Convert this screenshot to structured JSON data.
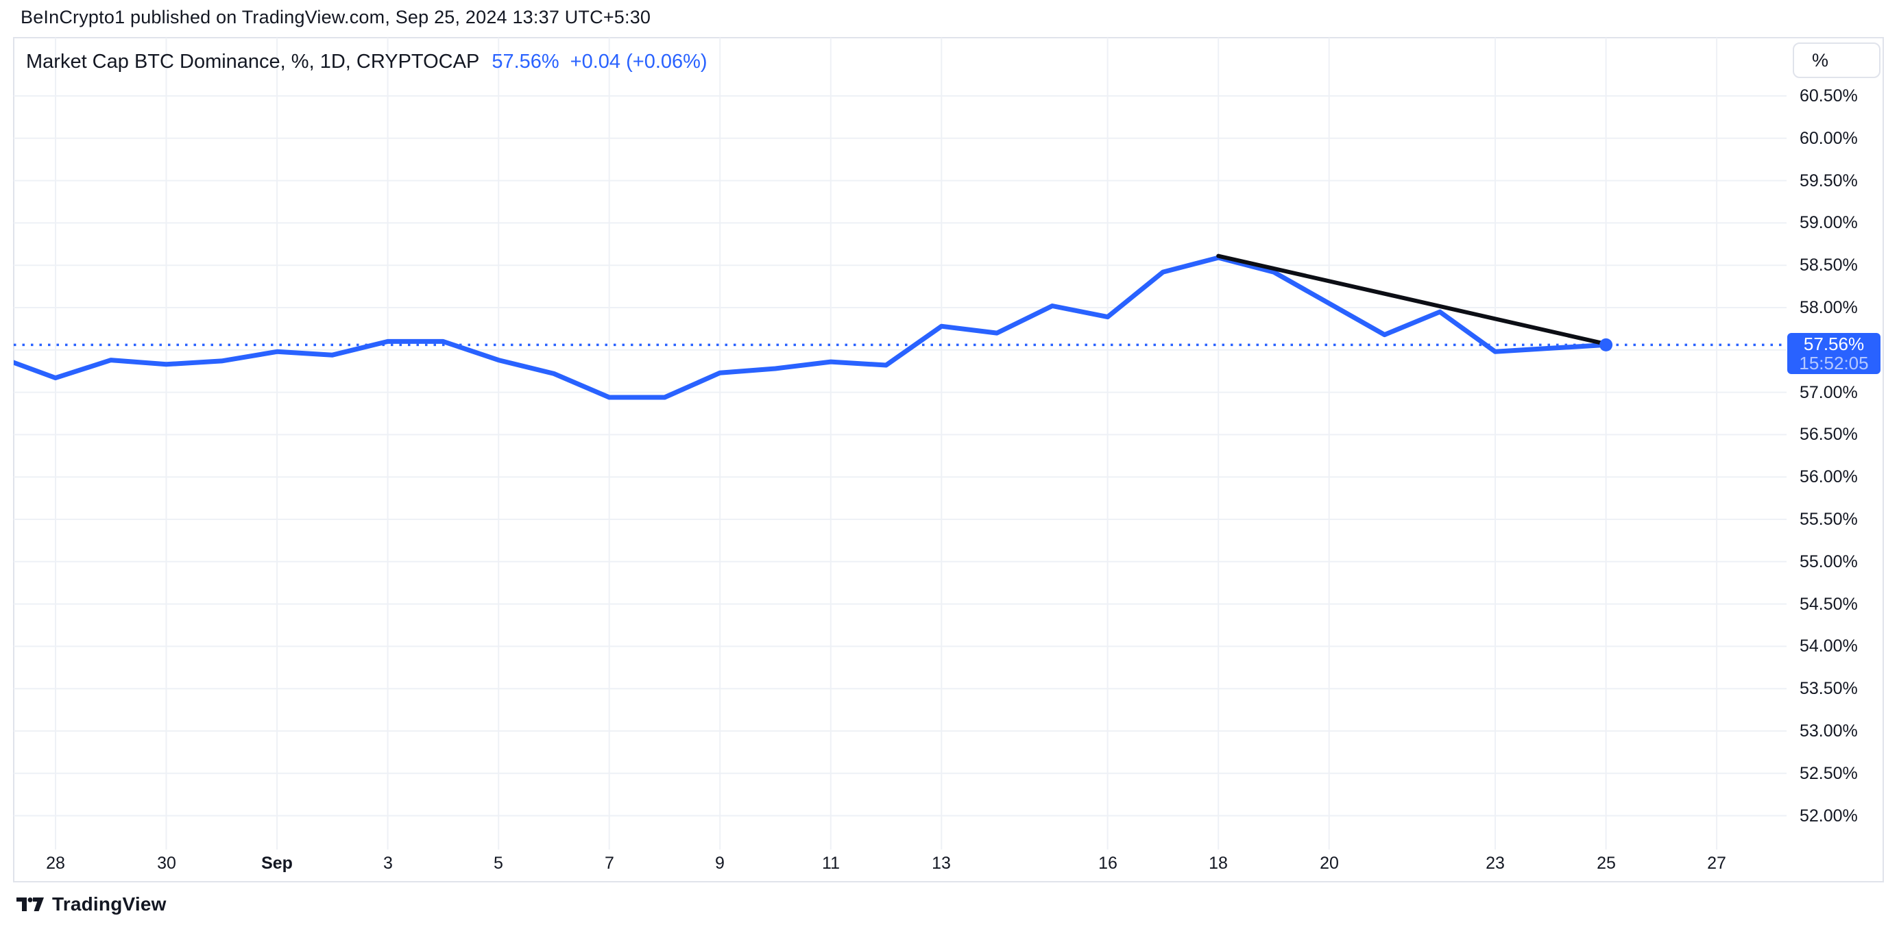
{
  "page": {
    "published_line": "BeInCrypto1 published on TradingView.com, Sep 25, 2024 13:37 UTC+5:30"
  },
  "legend": {
    "title": "Market Cap BTC Dominance, %, 1D, CRYPTOCAP",
    "last_value": "57.56%",
    "change": "+0.04 (+0.06%)"
  },
  "price_axis": {
    "unit_button": "%",
    "labels": [
      {
        "text": "60.50%",
        "value": 60.5
      },
      {
        "text": "60.00%",
        "value": 60.0
      },
      {
        "text": "59.50%",
        "value": 59.5
      },
      {
        "text": "59.00%",
        "value": 59.0
      },
      {
        "text": "58.50%",
        "value": 58.5
      },
      {
        "text": "58.00%",
        "value": 58.0
      },
      {
        "text": "57.00%",
        "value": 57.0
      },
      {
        "text": "56.50%",
        "value": 56.5
      },
      {
        "text": "56.00%",
        "value": 56.0
      },
      {
        "text": "55.50%",
        "value": 55.5
      },
      {
        "text": "55.00%",
        "value": 55.0
      },
      {
        "text": "54.50%",
        "value": 54.5
      },
      {
        "text": "54.00%",
        "value": 54.0
      },
      {
        "text": "53.50%",
        "value": 53.5
      },
      {
        "text": "53.00%",
        "value": 53.0
      },
      {
        "text": "52.50%",
        "value": 52.5
      },
      {
        "text": "52.00%",
        "value": 52.0
      }
    ],
    "price_label": {
      "value": "57.56%",
      "countdown": "15:52:05"
    }
  },
  "time_axis": {
    "ticks": [
      {
        "label": "28",
        "i": 1
      },
      {
        "label": "30",
        "i": 3
      },
      {
        "label": "Sep",
        "i": 5,
        "bold": true
      },
      {
        "label": "3",
        "i": 7
      },
      {
        "label": "5",
        "i": 9
      },
      {
        "label": "7",
        "i": 11
      },
      {
        "label": "9",
        "i": 13
      },
      {
        "label": "11",
        "i": 15
      },
      {
        "label": "13",
        "i": 17
      },
      {
        "label": "16",
        "i": 20
      },
      {
        "label": "18",
        "i": 22
      },
      {
        "label": "20",
        "i": 24
      },
      {
        "label": "23",
        "i": 27
      },
      {
        "label": "25",
        "i": 29
      },
      {
        "label": "27",
        "i": 31
      }
    ]
  },
  "chart_data": {
    "type": "line",
    "title": "Market Cap BTC Dominance, %, 1D, CRYPTOCAP",
    "symbol": "CRYPTOCAP",
    "interval": "1D",
    "unit": "%",
    "x": [
      "Aug 27",
      "Aug 28",
      "Aug 29",
      "Aug 30",
      "Aug 31",
      "Sep 1",
      "Sep 2",
      "Sep 3",
      "Sep 4",
      "Sep 5",
      "Sep 6",
      "Sep 7",
      "Sep 8",
      "Sep 9",
      "Sep 10",
      "Sep 11",
      "Sep 12",
      "Sep 13",
      "Sep 14",
      "Sep 15",
      "Sep 16",
      "Sep 17",
      "Sep 18",
      "Sep 19",
      "Sep 20",
      "Sep 21",
      "Sep 22",
      "Sep 23",
      "Sep 24",
      "Sep 25"
    ],
    "values": [
      57.41,
      57.17,
      57.38,
      57.33,
      57.37,
      57.48,
      57.44,
      57.6,
      57.6,
      57.38,
      57.22,
      56.94,
      56.94,
      57.23,
      57.28,
      57.36,
      57.32,
      57.78,
      57.7,
      58.02,
      57.89,
      58.42,
      58.59,
      58.42,
      58.05,
      57.68,
      57.95,
      57.48,
      57.52,
      57.56
    ],
    "last_value": 57.56,
    "change": 0.04,
    "change_pct": 0.06,
    "ylim": [
      52.0,
      60.5
    ],
    "y_step": 0.5,
    "grid": true,
    "legend_position": "top-left",
    "trendline": {
      "from": {
        "x": "Sep 18",
        "value": 58.61
      },
      "to": {
        "x": "Sep 25",
        "value": 57.57
      }
    }
  },
  "footer": {
    "brand": "TradingView"
  },
  "colors": {
    "series": "#2962ff",
    "price_line": "#2962ff",
    "price_label_bg": "#2962ff",
    "trendline": "#0c0e15",
    "grid": "#eef1f6",
    "frame": "#e0e3eb",
    "text": "#131722",
    "background": "#ffffff"
  }
}
